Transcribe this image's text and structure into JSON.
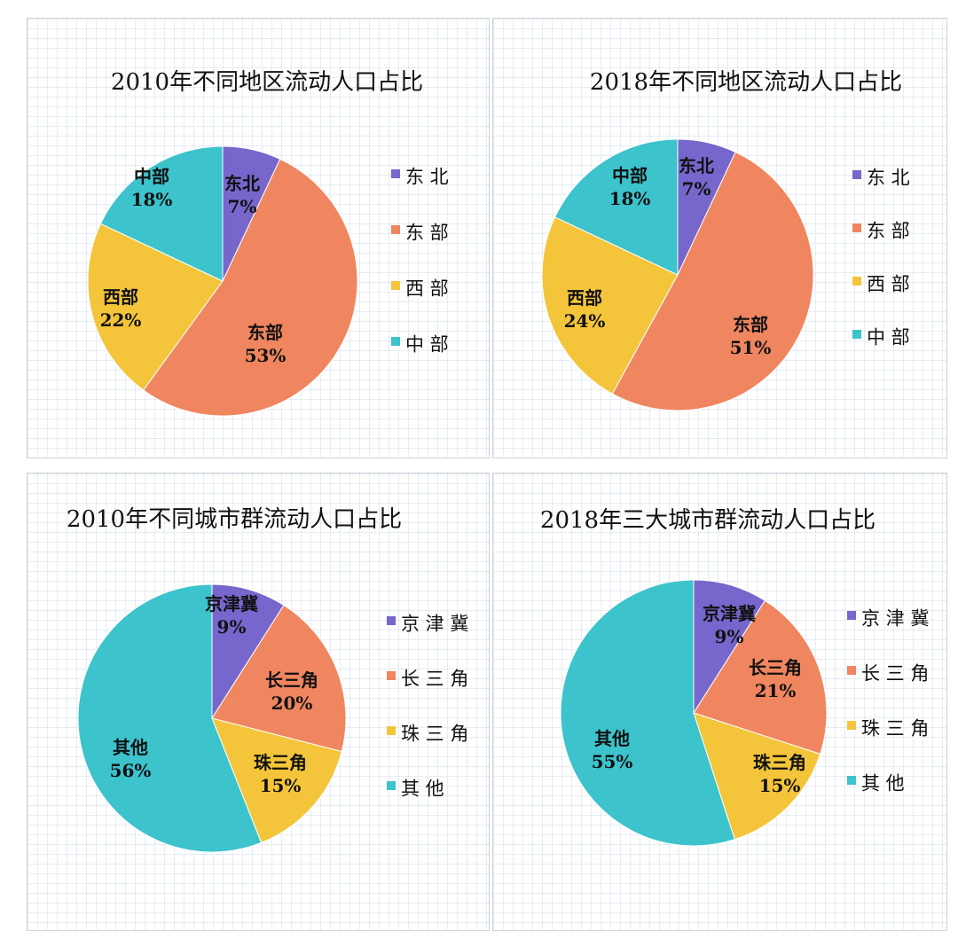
{
  "colors": {
    "purple": "#7766cc",
    "orange": "#ef8660",
    "yellow": "#f4c53a",
    "teal": "#3cc3cc"
  },
  "chart_data": [
    {
      "type": "pie",
      "title": "2010年不同地区流动人口占比",
      "categories": [
        "东北",
        "东部",
        "西部",
        "中部"
      ],
      "values": [
        7,
        53,
        22,
        18
      ],
      "value_labels": [
        "7%",
        "53%",
        "22%",
        "18%"
      ],
      "legend": "right"
    },
    {
      "type": "pie",
      "title": "2018年不同地区流动人口占比",
      "categories": [
        "东北",
        "东部",
        "西部",
        "中部"
      ],
      "values": [
        7,
        51,
        24,
        18
      ],
      "value_labels": [
        "7%",
        "51%",
        "24%",
        "18%"
      ],
      "legend": "right"
    },
    {
      "type": "pie",
      "title": "2010年不同城市群流动人口占比",
      "categories": [
        "京津冀",
        "长三角",
        "珠三角",
        "其他"
      ],
      "values": [
        9,
        20,
        15,
        56
      ],
      "value_labels": [
        "9%",
        "20%",
        "15%",
        "56%"
      ],
      "legend": "right"
    },
    {
      "type": "pie",
      "title": "2018年三大城市群流动人口占比",
      "categories": [
        "京津冀",
        "长三角",
        "珠三角",
        "其他"
      ],
      "values": [
        9,
        21,
        15,
        55
      ],
      "value_labels": [
        "9%",
        "21%",
        "15%",
        "55%"
      ],
      "legend": "right"
    }
  ]
}
